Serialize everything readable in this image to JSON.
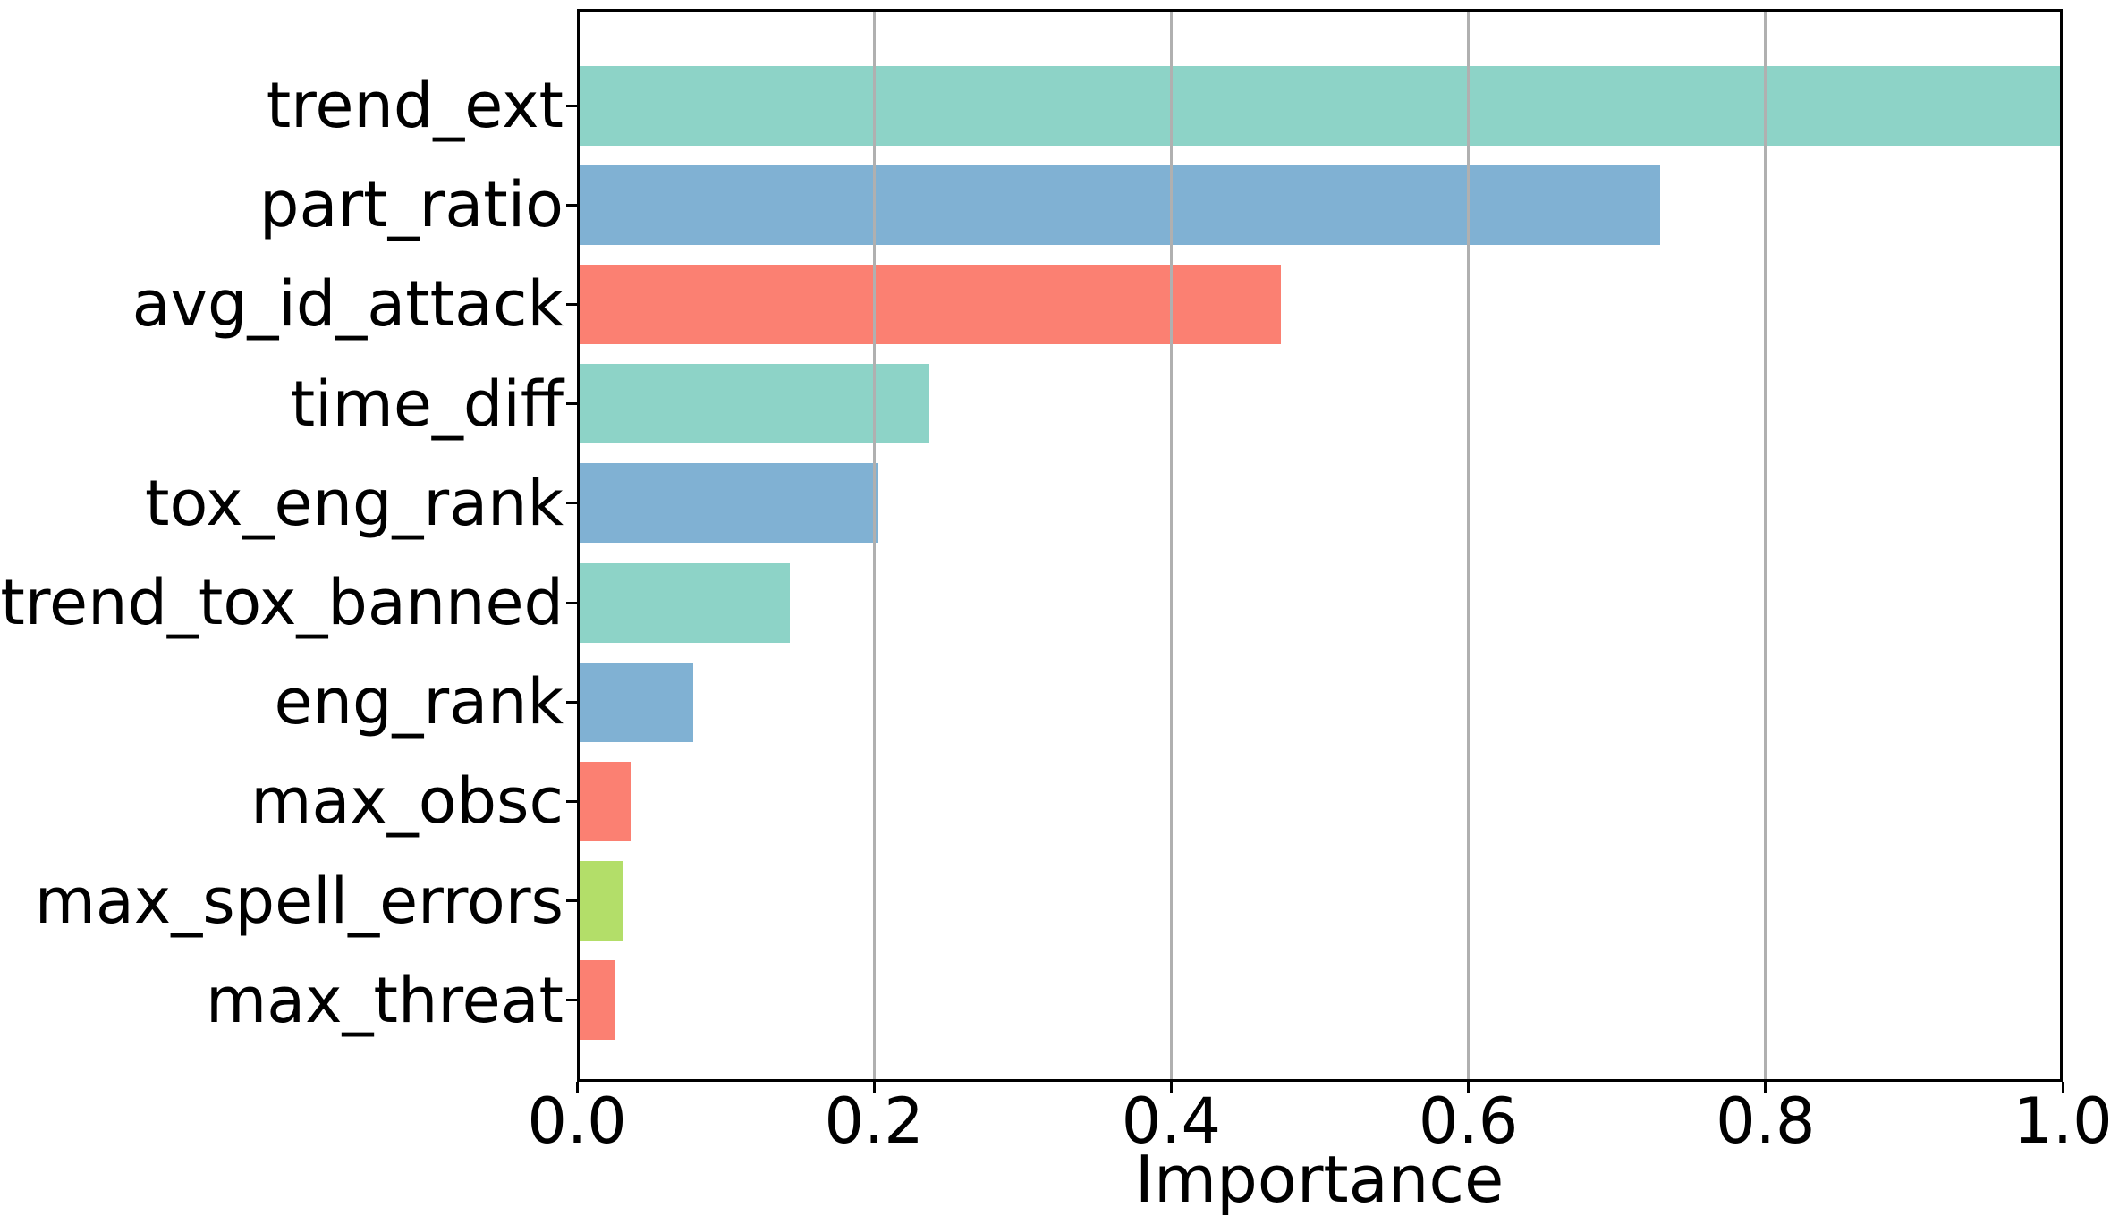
{
  "chart_data": {
    "type": "bar",
    "orientation": "horizontal",
    "title": "",
    "xlabel": "Importance",
    "ylabel": "",
    "categories": [
      "trend_ext",
      "part_ratio",
      "avg_id_attack",
      "time_diff",
      "tox_eng_rank",
      "trend_tox_banned",
      "eng_rank",
      "max_obsc",
      "max_spell_errors",
      "max_threat"
    ],
    "values": [
      1.0,
      0.729,
      0.474,
      0.237,
      0.203,
      0.143,
      0.078,
      0.037,
      0.031,
      0.025
    ],
    "bar_colors": [
      "#8dd3c7",
      "#80b1d3",
      "#fb8072",
      "#8dd3c7",
      "#80b1d3",
      "#8dd3c7",
      "#80b1d3",
      "#fb8072",
      "#b3de69",
      "#fb8072"
    ],
    "xlim": [
      0.0,
      1.0
    ],
    "xtick_labels": [
      "0.0",
      "0.2",
      "0.4",
      "0.6",
      "0.8",
      "1.0"
    ],
    "xtick_values": [
      0.0,
      0.2,
      0.4,
      0.6,
      0.8,
      1.0
    ],
    "grid": "vertical",
    "gridline_values": [
      0.2,
      0.4,
      0.6,
      0.8
    ],
    "grid_color": "#b0b0b0",
    "spine_color": "#000000",
    "text_color": "#000000",
    "background_color": "#ffffff",
    "legend": null
  }
}
